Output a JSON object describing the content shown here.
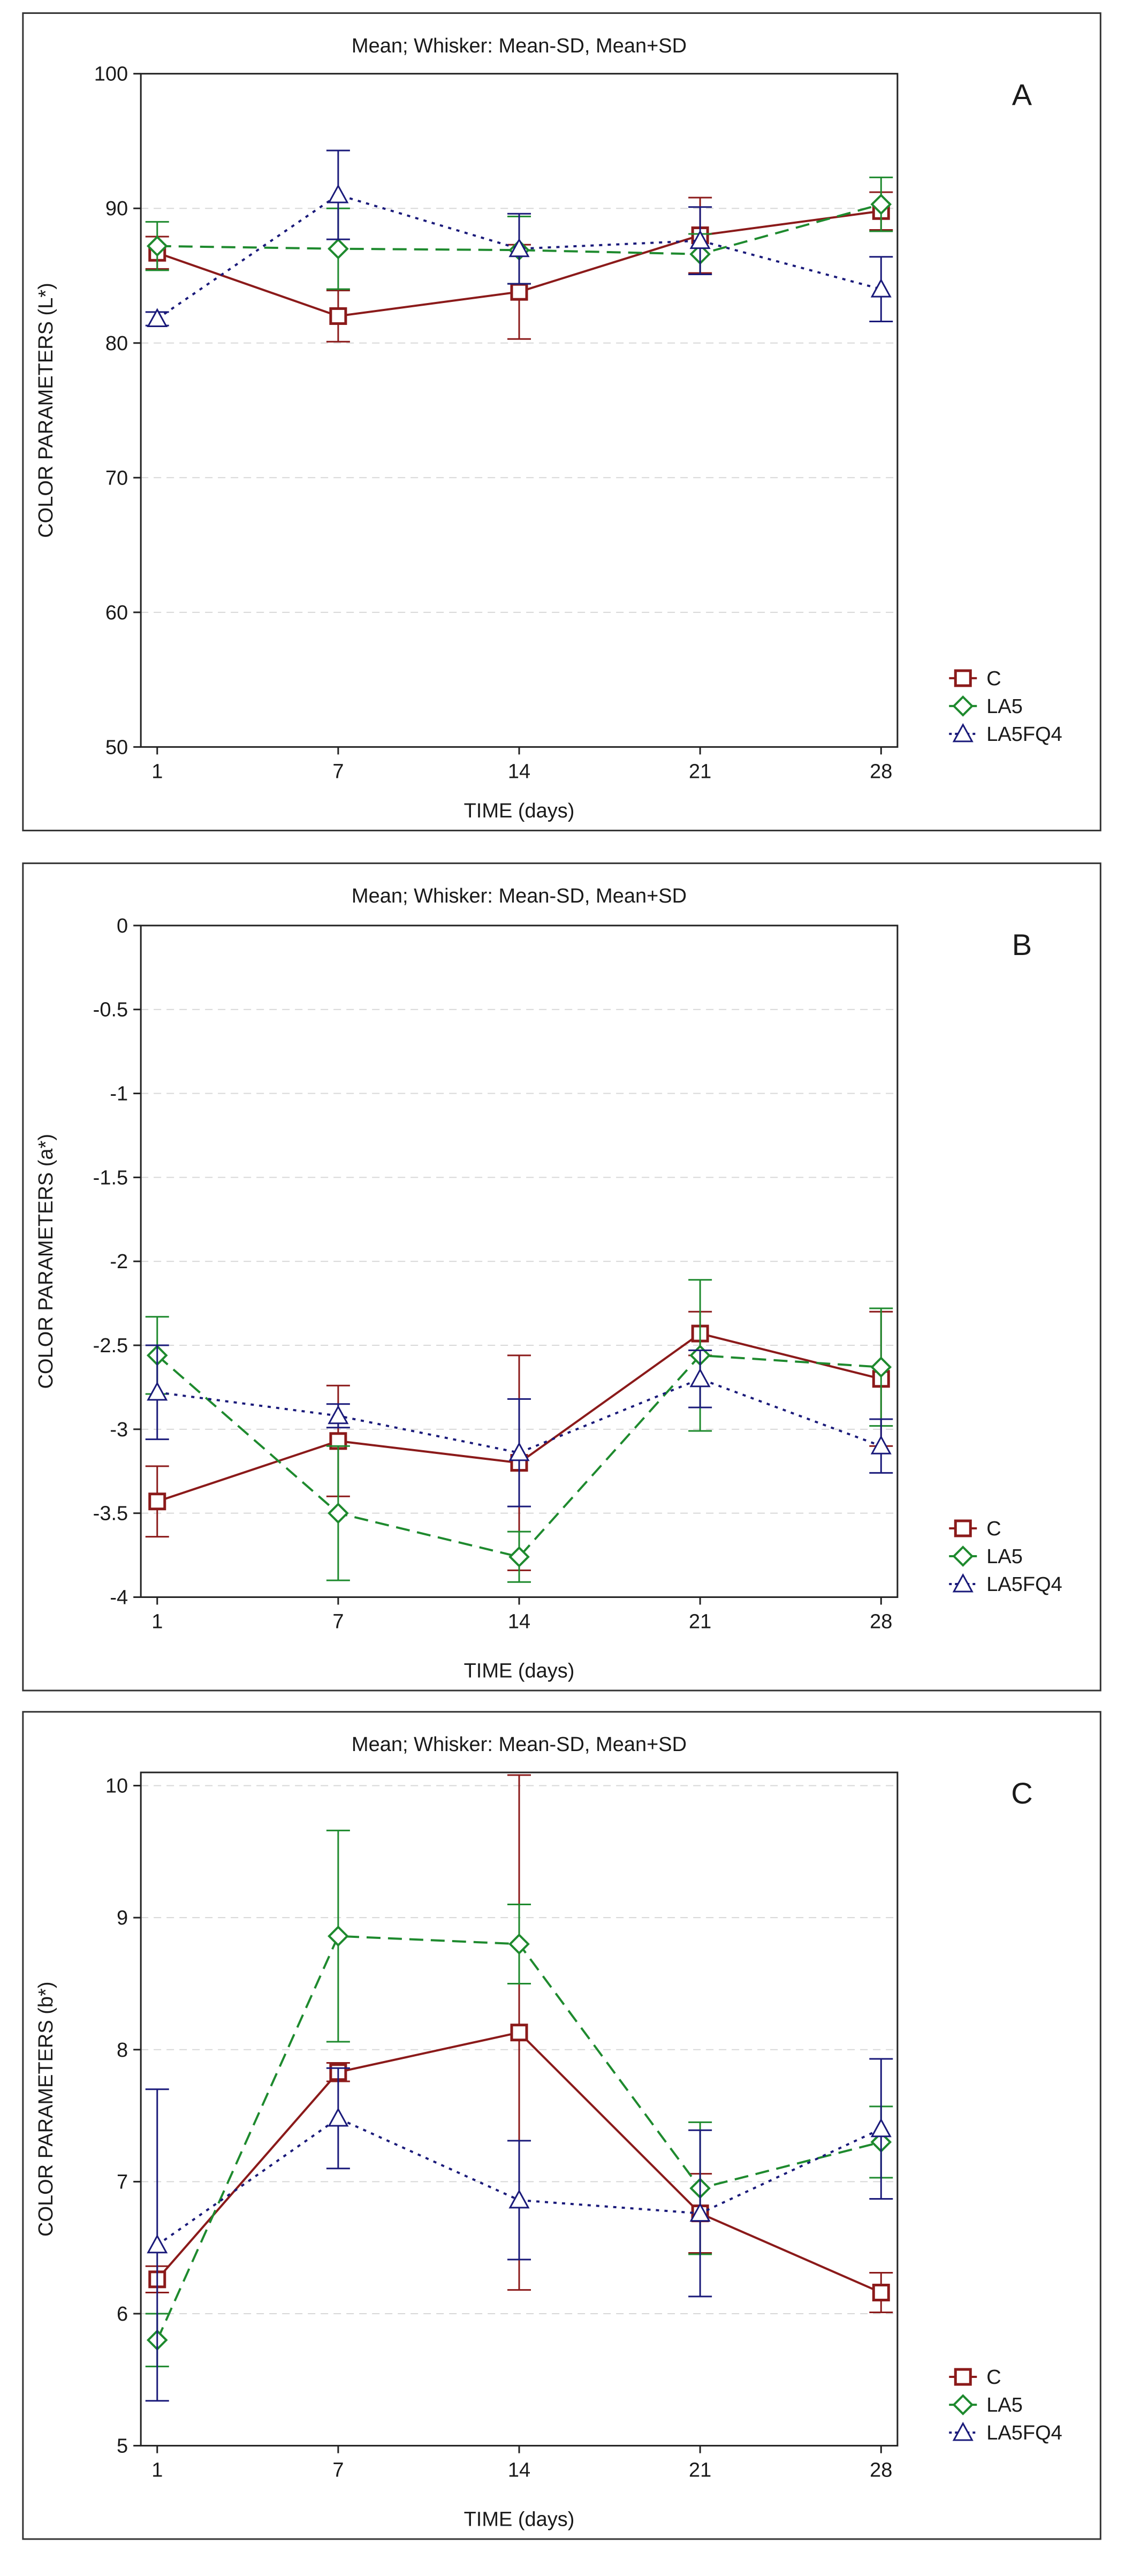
{
  "chart_data": [
    {
      "type": "line",
      "header": "Mean;  Whisker: Mean-SD, Mean+SD",
      "panel_label": "A",
      "xlabel": "TIME (days)",
      "ylabel": "COLOR PARAMETERS (L*)",
      "categories": [
        "1",
        "7",
        "14",
        "21",
        "28"
      ],
      "ylim": [
        50,
        100
      ],
      "yticks": [
        50,
        60,
        70,
        80,
        90,
        100
      ],
      "ytick_labels": [
        "50",
        "60",
        "70",
        "80",
        "90",
        "100"
      ],
      "grid": true,
      "legend_position": "bottom-right",
      "series": [
        {
          "name": "C",
          "marker": "square",
          "line": "solid",
          "color": "#8b1a1a",
          "values": [
            86.7,
            82.0,
            83.8,
            88.0,
            89.8
          ],
          "sd": [
            1.2,
            1.9,
            3.5,
            2.8,
            1.4
          ]
        },
        {
          "name": "LA5",
          "marker": "diamond",
          "line": "dashed",
          "color": "#1e8a2e",
          "values": [
            87.2,
            87.0,
            86.9,
            86.6,
            90.3
          ],
          "sd": [
            1.8,
            3.0,
            2.5,
            1.5,
            2.0
          ]
        },
        {
          "name": "LA5FQ4",
          "marker": "triangle",
          "line": "dotted",
          "color": "#1a1a7a",
          "values": [
            81.8,
            91.0,
            87.0,
            87.6,
            84.0
          ],
          "sd": [
            0.5,
            3.3,
            2.6,
            2.5,
            2.4
          ]
        }
      ]
    },
    {
      "type": "line",
      "header": "Mean;  Whisker: Mean-SD, Mean+SD",
      "panel_label": "B",
      "xlabel": "TIME (days)",
      "ylabel": "COLOR PARAMETERS (a*)",
      "categories": [
        "1",
        "7",
        "14",
        "21",
        "28"
      ],
      "ylim": [
        -4,
        0
      ],
      "yticks": [
        -4,
        -3.5,
        -3,
        -2.5,
        -2,
        -1.5,
        -1,
        -0.5,
        0
      ],
      "ytick_labels": [
        "-4",
        "-3.5",
        "-3",
        "-2.5",
        "-2",
        "-1.5",
        "-1",
        "-0.5",
        "0"
      ],
      "grid": true,
      "legend_position": "bottom-right",
      "series": [
        {
          "name": "C",
          "marker": "square",
          "line": "solid",
          "color": "#8b1a1a",
          "values": [
            -3.43,
            -3.07,
            -3.2,
            -2.43,
            -2.7
          ],
          "sd": [
            0.21,
            0.33,
            0.64,
            0.13,
            0.4
          ]
        },
        {
          "name": "LA5",
          "marker": "diamond",
          "line": "dashed",
          "color": "#1e8a2e",
          "values": [
            -2.56,
            -3.5,
            -3.76,
            -2.56,
            -2.63
          ],
          "sd": [
            0.23,
            0.4,
            0.15,
            0.45,
            0.35
          ]
        },
        {
          "name": "LA5FQ4",
          "marker": "triangle",
          "line": "dotted",
          "color": "#1a1a7a",
          "values": [
            -2.78,
            -2.92,
            -3.14,
            -2.7,
            -3.1
          ],
          "sd": [
            0.28,
            0.07,
            0.32,
            0.17,
            0.16
          ]
        }
      ]
    },
    {
      "type": "line",
      "header": "Mean;  Whisker: Mean-SD, Mean+SD",
      "panel_label": "C",
      "xlabel": "TIME (days)",
      "ylabel": "COLOR PARAMETERS (b*)",
      "categories": [
        "1",
        "7",
        "14",
        "21",
        "28"
      ],
      "ylim": [
        5,
        10.1
      ],
      "yticks": [
        5,
        6,
        7,
        8,
        9,
        10
      ],
      "ytick_labels": [
        "5",
        "6",
        "7",
        "8",
        "9",
        "10"
      ],
      "grid": true,
      "legend_position": "bottom-right",
      "series": [
        {
          "name": "C",
          "marker": "square",
          "line": "solid",
          "color": "#8b1a1a",
          "values": [
            6.26,
            7.83,
            8.13,
            6.76,
            6.16
          ],
          "sd": [
            0.1,
            0.07,
            1.95,
            0.3,
            0.15
          ]
        },
        {
          "name": "LA5",
          "marker": "diamond",
          "line": "dashed",
          "color": "#1e8a2e",
          "values": [
            5.8,
            8.86,
            8.8,
            6.95,
            7.3
          ],
          "sd": [
            0.2,
            0.8,
            0.3,
            0.5,
            0.27
          ]
        },
        {
          "name": "LA5FQ4",
          "marker": "triangle",
          "line": "dotted",
          "color": "#1a1a7a",
          "values": [
            6.52,
            7.48,
            6.86,
            6.76,
            7.4
          ],
          "sd": [
            1.18,
            0.38,
            0.45,
            0.63,
            0.53
          ]
        }
      ]
    }
  ]
}
